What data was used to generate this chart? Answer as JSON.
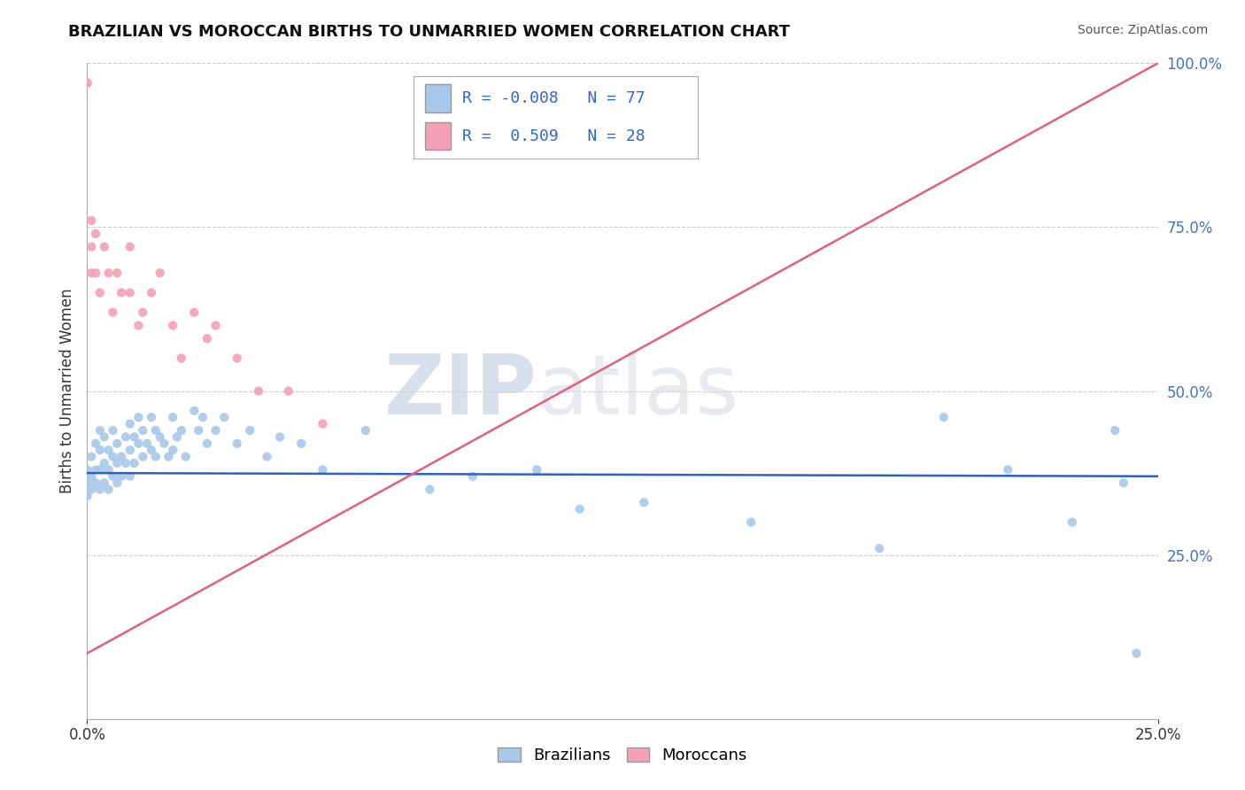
{
  "title": "BRAZILIAN VS MOROCCAN BIRTHS TO UNMARRIED WOMEN CORRELATION CHART",
  "source": "Source: ZipAtlas.com",
  "ylabel": "Births to Unmarried Women",
  "xlim": [
    0.0,
    0.25
  ],
  "ylim": [
    0.0,
    1.0
  ],
  "legend_r_brazil": "-0.008",
  "legend_n_brazil": "77",
  "legend_r_morocco": "0.509",
  "legend_n_morocco": "28",
  "brazil_color": "#a8c8e8",
  "morocco_color": "#f4a0b5",
  "brazil_line_color": "#3060c0",
  "morocco_line_color": "#e06080",
  "background_color": "#ffffff",
  "brazil_scatter": {
    "x": [
      0.0,
      0.0,
      0.0,
      0.001,
      0.001,
      0.001,
      0.002,
      0.002,
      0.002,
      0.003,
      0.003,
      0.003,
      0.003,
      0.004,
      0.004,
      0.004,
      0.005,
      0.005,
      0.005,
      0.006,
      0.006,
      0.006,
      0.007,
      0.007,
      0.007,
      0.008,
      0.008,
      0.009,
      0.009,
      0.01,
      0.01,
      0.01,
      0.011,
      0.011,
      0.012,
      0.012,
      0.013,
      0.013,
      0.014,
      0.015,
      0.015,
      0.016,
      0.016,
      0.017,
      0.018,
      0.019,
      0.02,
      0.02,
      0.021,
      0.022,
      0.023,
      0.025,
      0.026,
      0.027,
      0.028,
      0.03,
      0.032,
      0.035,
      0.038,
      0.042,
      0.045,
      0.05,
      0.055,
      0.065,
      0.08,
      0.09,
      0.105,
      0.115,
      0.13,
      0.155,
      0.185,
      0.2,
      0.215,
      0.23,
      0.24,
      0.242,
      0.245
    ],
    "y": [
      0.36,
      0.38,
      0.34,
      0.4,
      0.37,
      0.35,
      0.42,
      0.38,
      0.36,
      0.44,
      0.41,
      0.38,
      0.35,
      0.43,
      0.39,
      0.36,
      0.41,
      0.38,
      0.35,
      0.44,
      0.4,
      0.37,
      0.42,
      0.39,
      0.36,
      0.4,
      0.37,
      0.43,
      0.39,
      0.45,
      0.41,
      0.37,
      0.43,
      0.39,
      0.46,
      0.42,
      0.44,
      0.4,
      0.42,
      0.46,
      0.41,
      0.44,
      0.4,
      0.43,
      0.42,
      0.4,
      0.46,
      0.41,
      0.43,
      0.44,
      0.4,
      0.47,
      0.44,
      0.46,
      0.42,
      0.44,
      0.46,
      0.42,
      0.44,
      0.4,
      0.43,
      0.42,
      0.38,
      0.44,
      0.35,
      0.37,
      0.38,
      0.32,
      0.33,
      0.3,
      0.26,
      0.46,
      0.38,
      0.3,
      0.44,
      0.36,
      0.1
    ]
  },
  "morocco_scatter": {
    "x": [
      0.0,
      0.0,
      0.001,
      0.001,
      0.001,
      0.002,
      0.002,
      0.003,
      0.004,
      0.005,
      0.006,
      0.007,
      0.008,
      0.01,
      0.01,
      0.012,
      0.013,
      0.015,
      0.017,
      0.02,
      0.022,
      0.025,
      0.028,
      0.03,
      0.035,
      0.04,
      0.047,
      0.055
    ],
    "y": [
      0.97,
      0.97,
      0.76,
      0.72,
      0.68,
      0.74,
      0.68,
      0.65,
      0.72,
      0.68,
      0.62,
      0.68,
      0.65,
      0.72,
      0.65,
      0.6,
      0.62,
      0.65,
      0.68,
      0.6,
      0.55,
      0.62,
      0.58,
      0.6,
      0.55,
      0.5,
      0.5,
      0.45
    ]
  },
  "brazil_line": {
    "x0": 0.0,
    "x1": 0.25,
    "y0": 0.375,
    "y1": 0.37
  },
  "morocco_line": {
    "x0": 0.0,
    "x1": 0.25,
    "y0": 0.1,
    "y1": 1.0
  }
}
